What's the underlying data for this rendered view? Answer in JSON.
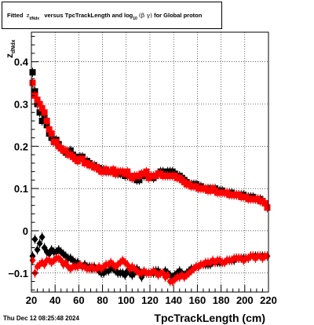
{
  "title": {
    "prefix": "Fitted",
    "z": "z",
    "z_sub": "dNdx",
    "middle": "versus TpcTrackLength and log",
    "log_sub": "10",
    "beta_gamma": "(β γ)",
    "suffix": "for Global proton"
  },
  "timestamp": "Thu Dec 12 08:25:48 2024",
  "chart_data": {
    "type": "scatter",
    "xlabel": "TpcTrackLength (cm)",
    "ylabel": "z",
    "ylabel_sub": "dNdx",
    "xlim": [
      20,
      220
    ],
    "ylim": [
      -0.145,
      0.47
    ],
    "xticks": [
      20,
      40,
      60,
      80,
      100,
      120,
      140,
      160,
      180,
      200,
      220
    ],
    "yticks": [
      -0.1,
      0,
      0.1,
      0.2,
      0.3,
      0.4
    ],
    "ytick_labels": [
      "−0.1",
      "0",
      "0.1",
      "0.2",
      "0.3",
      "0.4"
    ],
    "grid": true,
    "series": [
      {
        "color": "#000000",
        "marker": "square",
        "x": [
          21,
          23,
          25,
          27,
          29,
          31,
          33,
          35,
          37,
          39,
          41,
          43,
          45,
          47,
          49,
          51,
          53,
          55,
          57,
          59,
          61,
          63,
          65,
          67,
          69,
          71,
          73,
          75,
          77,
          79,
          81,
          83,
          85,
          87,
          89,
          91,
          93,
          95,
          97,
          99,
          101,
          103,
          105,
          107,
          109,
          111,
          113,
          115,
          117,
          119,
          121,
          123,
          125,
          127,
          129,
          131,
          133,
          135,
          137,
          139,
          141,
          143,
          145,
          147,
          149,
          151,
          153,
          155,
          157,
          159,
          161,
          163,
          165,
          167,
          169,
          171,
          173,
          175,
          177,
          179,
          181,
          183,
          185,
          187,
          189,
          191,
          193,
          195,
          197,
          199,
          201,
          203,
          205,
          207,
          209,
          211,
          213,
          215,
          217,
          219
        ],
        "y": [
          0.375,
          0.33,
          0.3,
          0.28,
          0.26,
          0.27,
          0.25,
          0.23,
          0.22,
          0.215,
          0.215,
          0.205,
          0.195,
          0.19,
          0.185,
          0.185,
          0.19,
          0.18,
          0.175,
          0.17,
          0.175,
          0.175,
          0.165,
          0.165,
          0.16,
          0.155,
          0.155,
          0.15,
          0.148,
          0.145,
          0.145,
          0.14,
          0.14,
          0.14,
          0.14,
          0.135,
          0.135,
          0.135,
          0.135,
          0.13,
          0.13,
          0.13,
          0.125,
          0.125,
          0.12,
          0.12,
          0.13,
          0.13,
          0.135,
          0.13,
          0.13,
          0.125,
          0.13,
          0.135,
          0.14,
          0.14,
          0.135,
          0.14,
          0.14,
          0.14,
          0.135,
          0.13,
          0.13,
          0.125,
          0.12,
          0.115,
          0.11,
          0.11,
          0.11,
          0.11,
          0.105,
          0.105,
          0.1,
          0.1,
          0.1,
          0.1,
          0.1,
          0.1,
          0.095,
          0.095,
          0.095,
          0.09,
          0.09,
          0.09,
          0.09,
          0.085,
          0.085,
          0.085,
          0.085,
          0.085,
          0.08,
          0.08,
          0.08,
          0.08,
          0.075,
          0.075,
          0.075,
          0.07,
          0.065,
          0.055
        ]
      },
      {
        "color": "#ff0000",
        "marker": "square",
        "x": [
          21,
          23,
          25,
          27,
          29,
          31,
          33,
          35,
          37,
          39,
          41,
          43,
          45,
          47,
          49,
          51,
          53,
          55,
          57,
          59,
          61,
          63,
          65,
          67,
          69,
          71,
          73,
          75,
          77,
          79,
          81,
          83,
          85,
          87,
          89,
          91,
          93,
          95,
          97,
          99,
          101,
          103,
          105,
          107,
          109,
          111,
          113,
          115,
          117,
          119,
          121,
          123,
          125,
          127,
          129,
          131,
          133,
          135,
          137,
          139,
          141,
          143,
          145,
          147,
          149,
          151,
          153,
          155,
          157,
          159,
          161,
          163,
          165,
          167,
          169,
          171,
          173,
          175,
          177,
          179,
          181,
          183,
          185,
          187,
          189,
          191,
          193,
          195,
          197,
          199,
          201,
          203,
          205,
          207,
          209,
          211,
          213,
          215,
          217,
          219
        ],
        "y": [
          0.35,
          0.32,
          0.31,
          0.3,
          0.29,
          0.28,
          0.26,
          0.24,
          0.23,
          0.21,
          0.21,
          0.2,
          0.195,
          0.19,
          0.19,
          0.18,
          0.18,
          0.175,
          0.17,
          0.165,
          0.17,
          0.17,
          0.16,
          0.16,
          0.155,
          0.155,
          0.15,
          0.15,
          0.145,
          0.14,
          0.14,
          0.145,
          0.14,
          0.14,
          0.145,
          0.135,
          0.14,
          0.14,
          0.14,
          0.135,
          0.14,
          0.13,
          0.125,
          0.13,
          0.13,
          0.13,
          0.135,
          0.135,
          0.14,
          0.125,
          0.13,
          0.13,
          0.13,
          0.135,
          0.135,
          0.13,
          0.13,
          0.13,
          0.13,
          0.13,
          0.13,
          0.125,
          0.125,
          0.12,
          0.115,
          0.11,
          0.11,
          0.105,
          0.105,
          0.105,
          0.1,
          0.1,
          0.1,
          0.1,
          0.095,
          0.095,
          0.1,
          0.095,
          0.09,
          0.09,
          0.09,
          0.09,
          0.09,
          0.085,
          0.085,
          0.085,
          0.085,
          0.085,
          0.08,
          0.08,
          0.08,
          0.075,
          0.075,
          0.075,
          0.075,
          0.075,
          0.07,
          0.07,
          0.065,
          0.055
        ]
      },
      {
        "color": "#000000",
        "marker": "diamond",
        "x": [
          21,
          23,
          25,
          27,
          29,
          31,
          33,
          35,
          37,
          39,
          41,
          43,
          45,
          47,
          49,
          51,
          53,
          55,
          57,
          59,
          61,
          63,
          65,
          67,
          69,
          71,
          73,
          75,
          77,
          79,
          81,
          83,
          85,
          87,
          89,
          91,
          93,
          95,
          97,
          99,
          101,
          103,
          105,
          107,
          109,
          111,
          113,
          115,
          117,
          119,
          121,
          123,
          125,
          127,
          129,
          131,
          133,
          135,
          137,
          139,
          141,
          143,
          145,
          147,
          149,
          151,
          153,
          155,
          157,
          159,
          161,
          163,
          165,
          167,
          169,
          171,
          173,
          175,
          177,
          179,
          181,
          183,
          185,
          187,
          189,
          191,
          193,
          195,
          197,
          199,
          201,
          203,
          205,
          207,
          209,
          211,
          213,
          215,
          217,
          219
        ],
        "y": [
          -0.06,
          -0.02,
          -0.045,
          -0.03,
          -0.015,
          -0.04,
          -0.05,
          -0.055,
          -0.045,
          -0.05,
          -0.05,
          -0.045,
          -0.05,
          -0.055,
          -0.06,
          -0.065,
          -0.065,
          -0.07,
          -0.075,
          -0.075,
          -0.08,
          -0.085,
          -0.08,
          -0.085,
          -0.085,
          -0.09,
          -0.085,
          -0.09,
          -0.095,
          -0.1,
          -0.1,
          -0.095,
          -0.095,
          -0.09,
          -0.09,
          -0.095,
          -0.1,
          -0.1,
          -0.1,
          -0.105,
          -0.095,
          -0.1,
          -0.105,
          -0.1,
          -0.09,
          -0.095,
          -0.11,
          -0.1,
          -0.1,
          -0.1,
          -0.1,
          -0.1,
          -0.095,
          -0.095,
          -0.1,
          -0.1,
          -0.095,
          -0.1,
          -0.105,
          -0.11,
          -0.105,
          -0.1,
          -0.095,
          -0.1,
          -0.105,
          -0.1,
          -0.095,
          -0.09,
          -0.09,
          -0.085,
          -0.085,
          -0.08,
          -0.08,
          -0.08,
          -0.08,
          -0.08,
          -0.075,
          -0.075,
          -0.075,
          -0.075,
          -0.075,
          -0.075,
          -0.07,
          -0.07,
          -0.07,
          -0.07,
          -0.065,
          -0.065,
          -0.065,
          -0.065,
          -0.065,
          -0.065,
          -0.06,
          -0.06,
          -0.06,
          -0.06,
          -0.06,
          -0.06,
          -0.06,
          -0.06
        ]
      },
      {
        "color": "#ff0000",
        "marker": "diamond",
        "x": [
          21,
          23,
          25,
          27,
          29,
          31,
          33,
          35,
          37,
          39,
          41,
          43,
          45,
          47,
          49,
          51,
          53,
          55,
          57,
          59,
          61,
          63,
          65,
          67,
          69,
          71,
          73,
          75,
          77,
          79,
          81,
          83,
          85,
          87,
          89,
          91,
          93,
          95,
          97,
          99,
          101,
          103,
          105,
          107,
          109,
          111,
          113,
          115,
          117,
          119,
          121,
          123,
          125,
          127,
          129,
          131,
          133,
          135,
          137,
          139,
          141,
          143,
          145,
          147,
          149,
          151,
          153,
          155,
          157,
          159,
          161,
          163,
          165,
          167,
          169,
          171,
          173,
          175,
          177,
          179,
          181,
          183,
          185,
          187,
          189,
          191,
          193,
          195,
          197,
          199,
          201,
          203,
          205,
          207,
          209,
          211,
          213,
          215,
          217,
          219
        ],
        "y": [
          -0.07,
          -0.1,
          -0.085,
          -0.08,
          -0.075,
          -0.08,
          -0.07,
          -0.07,
          -0.075,
          -0.07,
          -0.065,
          -0.065,
          -0.07,
          -0.08,
          -0.075,
          -0.085,
          -0.09,
          -0.085,
          -0.085,
          -0.085,
          -0.08,
          -0.085,
          -0.085,
          -0.09,
          -0.09,
          -0.085,
          -0.09,
          -0.09,
          -0.085,
          -0.09,
          -0.085,
          -0.08,
          -0.08,
          -0.075,
          -0.08,
          -0.085,
          -0.08,
          -0.075,
          -0.07,
          -0.075,
          -0.08,
          -0.09,
          -0.085,
          -0.09,
          -0.095,
          -0.1,
          -0.1,
          -0.095,
          -0.1,
          -0.1,
          -0.1,
          -0.095,
          -0.1,
          -0.105,
          -0.1,
          -0.1,
          -0.11,
          -0.105,
          -0.12,
          -0.12,
          -0.115,
          -0.11,
          -0.11,
          -0.105,
          -0.11,
          -0.105,
          -0.1,
          -0.095,
          -0.09,
          -0.085,
          -0.085,
          -0.08,
          -0.08,
          -0.075,
          -0.075,
          -0.075,
          -0.07,
          -0.075,
          -0.07,
          -0.07,
          -0.075,
          -0.075,
          -0.07,
          -0.07,
          -0.07,
          -0.065,
          -0.065,
          -0.065,
          -0.065,
          -0.07,
          -0.065,
          -0.065,
          -0.06,
          -0.06,
          -0.065,
          -0.06,
          -0.06,
          -0.065,
          -0.06,
          -0.06
        ]
      }
    ]
  }
}
